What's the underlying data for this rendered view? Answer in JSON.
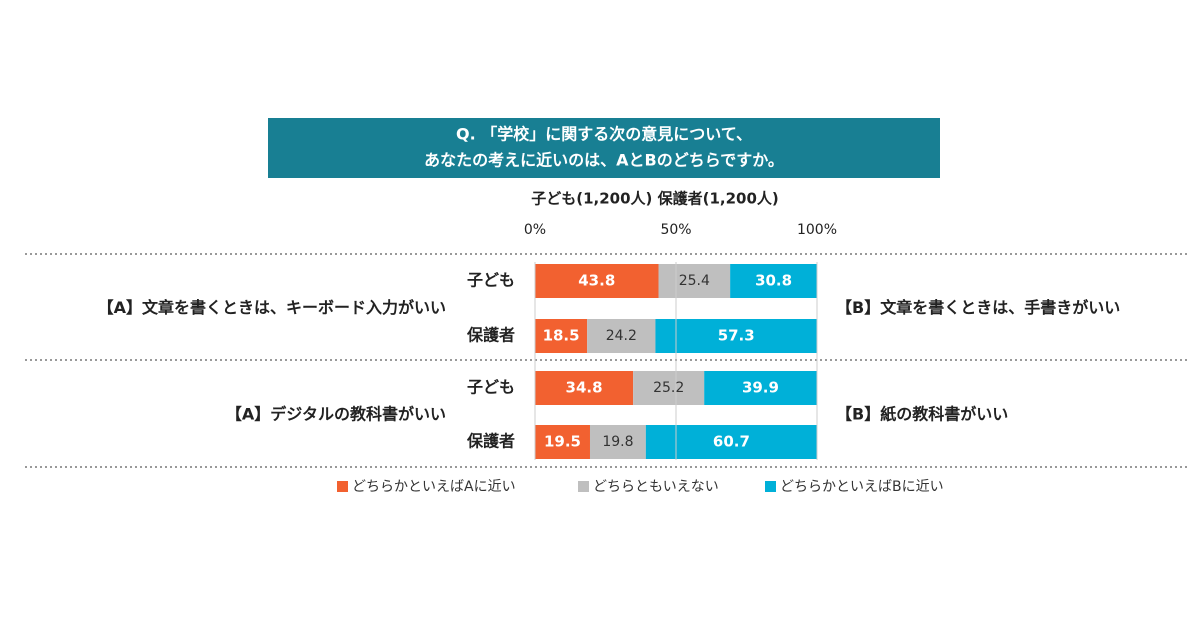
{
  "chart_data": {
    "type": "bar",
    "orientation": "horizontal",
    "stacked": true,
    "title": [
      "Q. 「学校」に関する次の意見について、",
      "あなたの考えに近いのは、AとBのどちらですか。"
    ],
    "subtitle": "子ども(1,200人) 保護者(1,200人)",
    "groups": [
      {
        "a": "【A】文章を書くときは、キーボード入力がいい",
        "b": "【B】文章を書くときは、手書きがいい"
      },
      {
        "a": "【A】デジタルの教科書がいい",
        "b": "【B】紙の教科書がいい"
      }
    ],
    "categories": [
      "子ども",
      "保護者",
      "子ども",
      "保護者"
    ],
    "series": [
      {
        "name": "どちらかといえばAに近い",
        "color": "#f26130",
        "values": [
          43.8,
          18.5,
          34.8,
          19.5
        ]
      },
      {
        "name": "どちらともいえない",
        "color": "#bfbfbf",
        "values": [
          25.4,
          24.2,
          25.2,
          19.8
        ]
      },
      {
        "name": "どちらかといえばBに近い",
        "color": "#00b0d8",
        "values": [
          30.8,
          57.3,
          39.9,
          60.7
        ]
      }
    ],
    "xlim": [
      0,
      100
    ],
    "xticks": [
      {
        "value": 0,
        "label": "0%"
      },
      {
        "value": 50,
        "label": "50%"
      },
      {
        "value": 100,
        "label": "100%"
      }
    ],
    "grid": true,
    "legend": "bottom"
  }
}
